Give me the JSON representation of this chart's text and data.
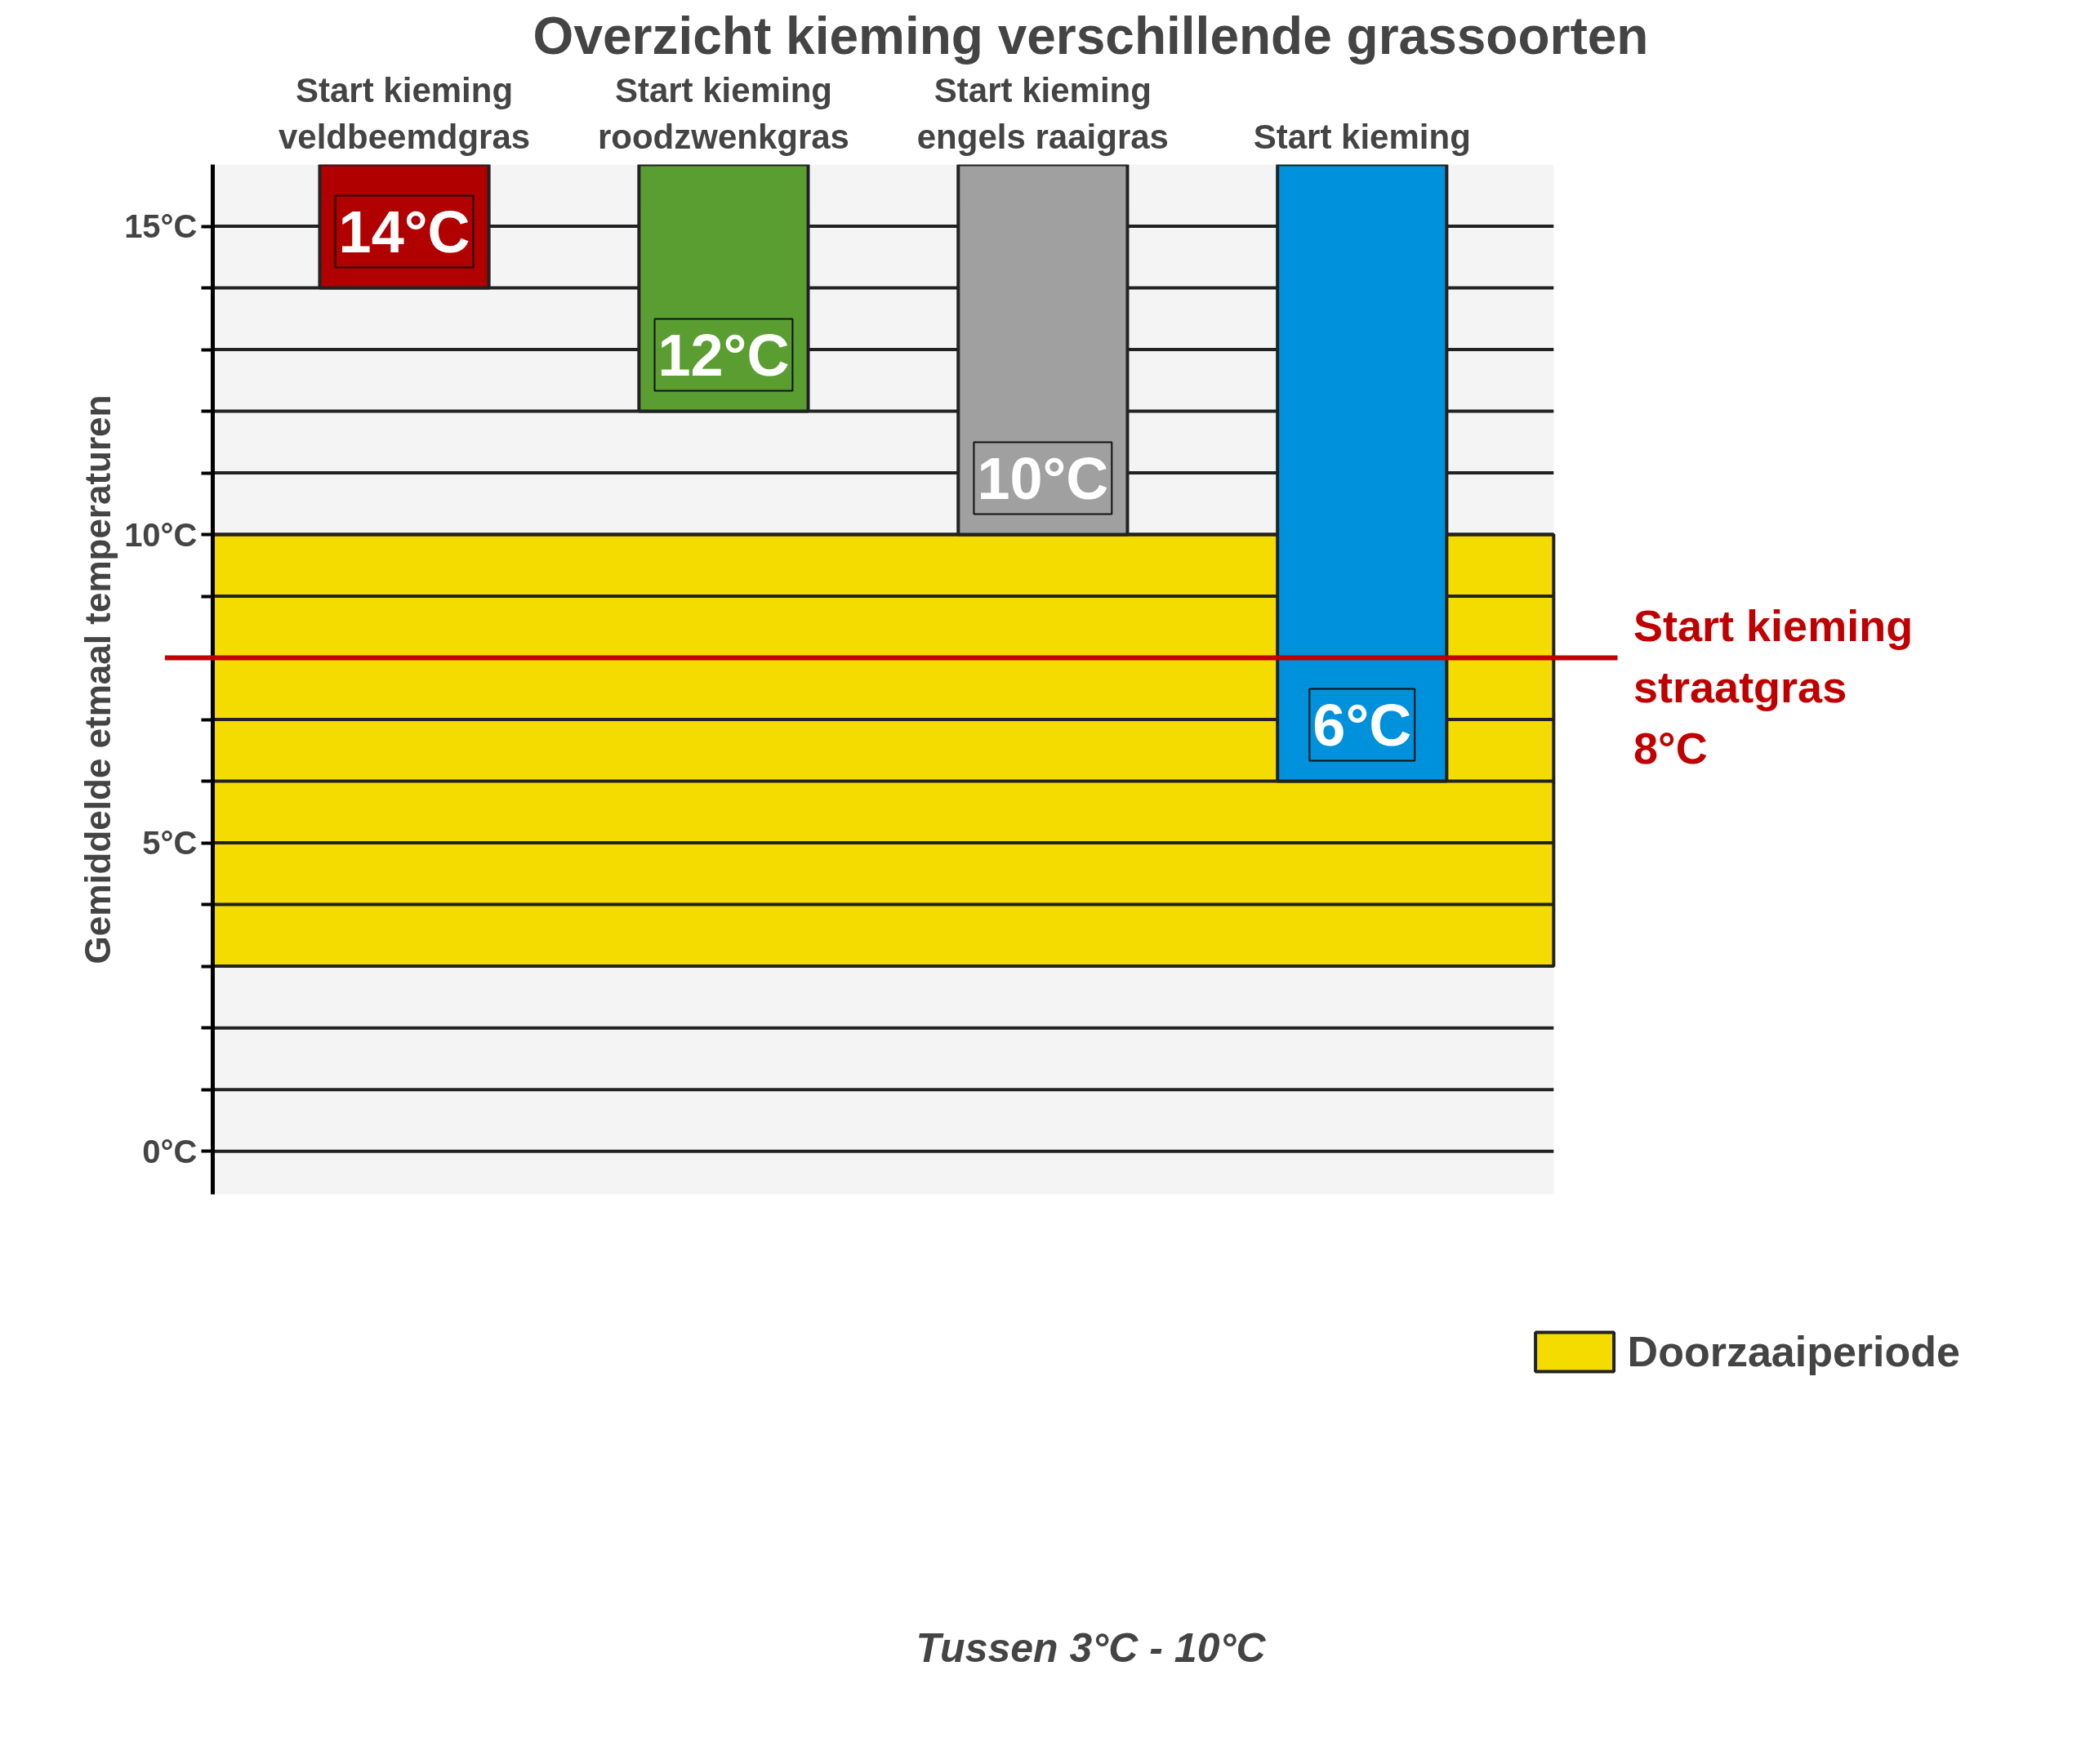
{
  "chart_data": {
    "type": "bar",
    "title": "Overzicht kieming verschillende grassoorten",
    "ylabel": "Gemiddelde etmaal temperaturen",
    "categories": [
      "Start kieming veldbeemdgras",
      "Start kieming roodzwenkgras",
      "Start kieming engels raaigras",
      "Start kieming"
    ],
    "base": [
      16,
      16,
      16,
      16
    ],
    "values": [
      -2,
      -4,
      -6,
      -10
    ],
    "colors": [
      "#b00000",
      "#5a9e32",
      "#a0a0a1",
      "#0091dc"
    ],
    "ylim": [
      -0.7,
      16
    ],
    "yticks": [
      {
        "value": 0,
        "label": "0°C"
      },
      {
        "value": 1,
        "label": null
      },
      {
        "value": 2,
        "label": null
      },
      {
        "value": 3,
        "label": null
      },
      {
        "value": 4,
        "label": null
      },
      {
        "value": 5,
        "label": "5°C"
      },
      {
        "value": 6,
        "label": null
      },
      {
        "value": 7,
        "label": null
      },
      {
        "value": 8,
        "label": null
      },
      {
        "value": 9,
        "label": null
      },
      {
        "value": 10,
        "label": "10°C"
      },
      {
        "value": 11,
        "label": null
      },
      {
        "value": 12,
        "label": null
      },
      {
        "value": 13,
        "label": null
      },
      {
        "value": 14,
        "label": null
      },
      {
        "value": 15,
        "label": "15°C"
      }
    ],
    "grid": "y",
    "bands": [
      {
        "axis": "y",
        "from": 3,
        "to": 10,
        "label": "Doorzaaiperiode",
        "color": "#f5dc00"
      }
    ],
    "ref_lines": [
      {
        "axis": "y",
        "value": 8,
        "label": "Start kieming straatgras 8°C",
        "color": "#c00000"
      }
    ],
    "annotations": [
      {
        "text": "14°C",
        "x": "Start kieming veldbeemdgras",
        "y": 14
      },
      {
        "text": "12°C",
        "x": "Start kieming roodzwenkgras",
        "y": 12
      },
      {
        "text": "10°C",
        "x": "Start kieming engels raaigras",
        "y": 10
      },
      {
        "text": "6°C",
        "x": "Start kieming",
        "y": 6
      },
      "Tussen 3°C - 10°C"
    ],
    "legend": "bottom"
  }
}
